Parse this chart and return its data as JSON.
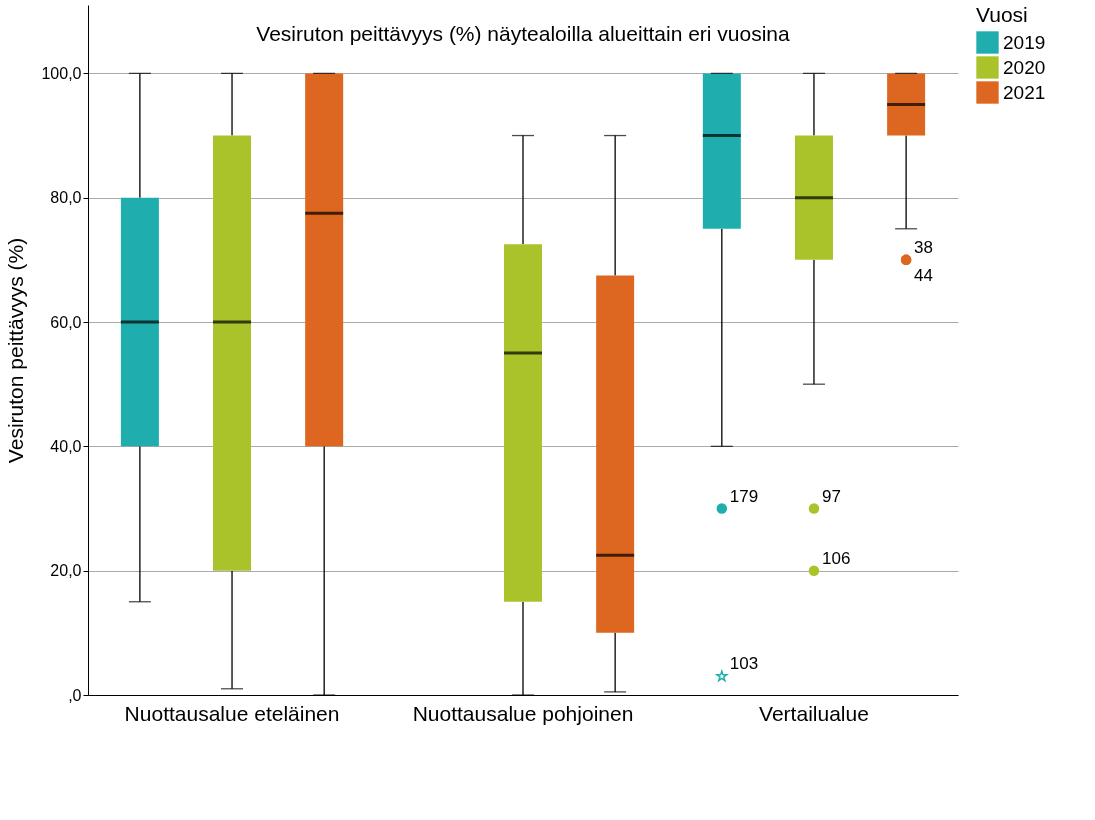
{
  "chart_data": {
    "type": "box",
    "title": "Vesiruton peittävyys (%) näytealoilla alueittain eri vuosina",
    "ylabel": "Vesiruton peittävyys (%)",
    "legend_title": "Vuosi",
    "legend": "top right",
    "grid": "y",
    "categories": [
      "Nuottausalue eteläinen",
      "Nuottausalue pohjoinen",
      "Vertailualue"
    ],
    "ylim": [
      0,
      111
    ],
    "yticks": [
      {
        "value": 0,
        "label": ",0"
      },
      {
        "value": 20,
        "label": "20,0"
      },
      {
        "value": 40,
        "label": "40,0"
      },
      {
        "value": 60,
        "label": "60,0"
      },
      {
        "value": 80,
        "label": "80,0"
      },
      {
        "value": 100,
        "label": "100,0"
      }
    ],
    "series": [
      {
        "name": "2019",
        "color": "#20adad",
        "boxes": [
          {
            "low": 15,
            "q1": 40,
            "median": 60,
            "q3": 80,
            "high": 100
          },
          null,
          {
            "low": 40,
            "q1": 75,
            "median": 90,
            "q3": 100,
            "high": 100,
            "outliers": [
              30
            ]
          }
        ]
      },
      {
        "name": "2020",
        "color": "#abc32b",
        "boxes": [
          {
            "low": 1,
            "q1": 20,
            "median": 60,
            "q3": 90,
            "high": 100
          },
          {
            "low": 0,
            "q1": 15,
            "median": 55,
            "q3": 72.5,
            "high": 90
          },
          {
            "low": 50,
            "q1": 70,
            "median": 80,
            "q3": 90,
            "high": 100,
            "outliers": [
              30,
              20
            ]
          }
        ]
      },
      {
        "name": "2021",
        "color": "#dd6620",
        "boxes": [
          {
            "low": 0,
            "q1": 40,
            "median": 77.5,
            "q3": 100,
            "high": 100
          },
          {
            "low": 0.5,
            "q1": 10,
            "median": 22.5,
            "q3": 67.5,
            "high": 90
          },
          {
            "low": 75,
            "q1": 90,
            "median": 95,
            "q3": 100,
            "high": 100,
            "outliers": [
              70,
              70
            ]
          }
        ]
      },
      {
        "type": "scatter",
        "color": "#20adad",
        "marker": "star",
        "x": [
          "Vertailualue"
        ],
        "values": [
          3
        ]
      }
    ],
    "annotations": [
      "179",
      "97",
      "106",
      "38",
      "44",
      "103"
    ]
  }
}
